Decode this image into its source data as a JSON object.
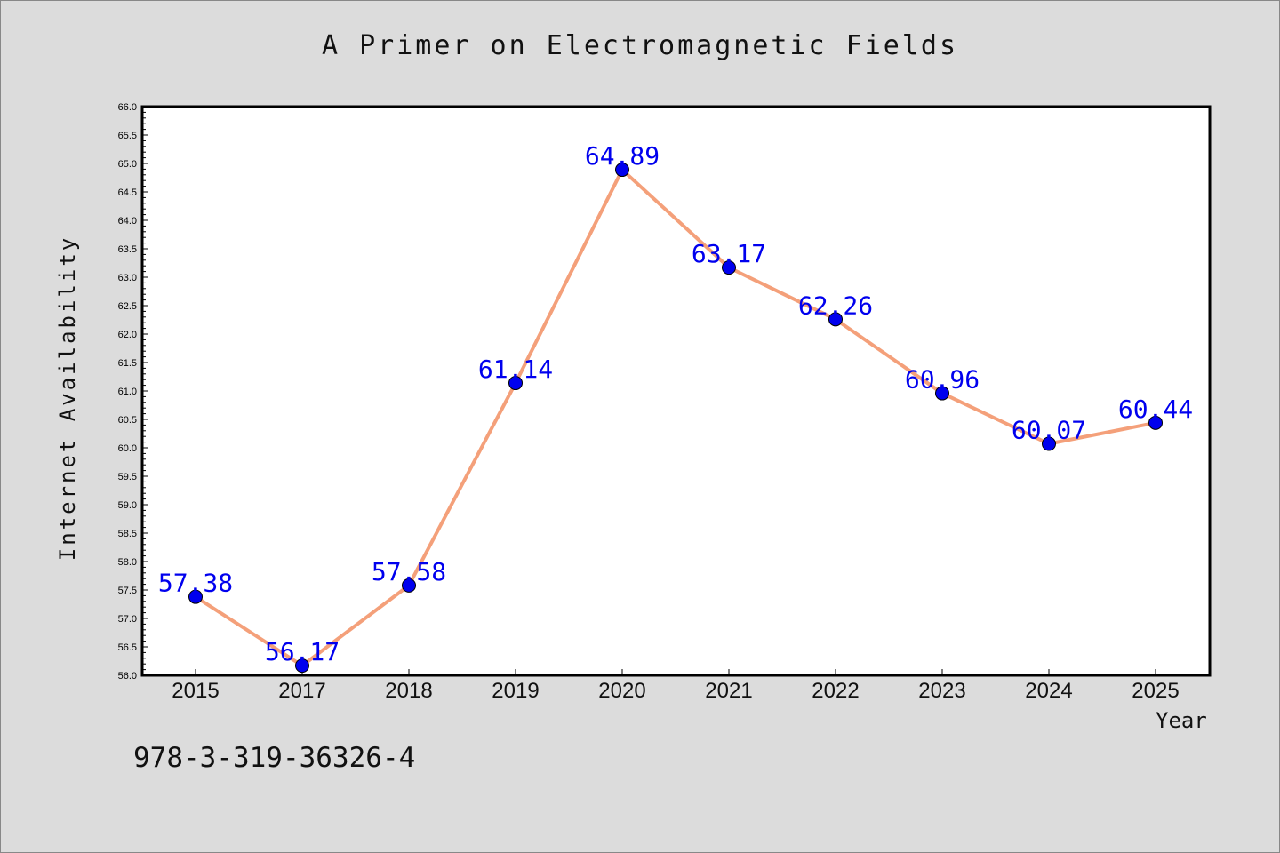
{
  "chart_data": {
    "type": "line",
    "title": "A Primer on Electromagnetic Fields",
    "xlabel": "Year",
    "ylabel": "Internet Availability",
    "categories": [
      "2015",
      "2017",
      "2018",
      "2019",
      "2020",
      "2021",
      "2022",
      "2023",
      "2024",
      "2025"
    ],
    "series": [
      {
        "values": [
          57.38,
          56.17,
          57.58,
          61.14,
          64.89,
          63.17,
          62.26,
          60.96,
          60.07,
          60.44
        ]
      }
    ],
    "data_labels": [
      "57.38",
      "56.17",
      "57.58",
      "61.14",
      "64.89",
      "63.17",
      "62.26",
      "60.96",
      "60.07",
      "60.44"
    ],
    "ylim": [
      56.0,
      66.0
    ],
    "yticks": [
      "56.0",
      "56.5",
      "57.0",
      "57.5",
      "58.0",
      "58.5",
      "59.0",
      "59.5",
      "60.0",
      "60.5",
      "61.0",
      "61.5",
      "62.0",
      "62.5",
      "63.0",
      "63.5",
      "64.0",
      "64.5",
      "65.0",
      "65.5",
      "66.0"
    ],
    "grid": false,
    "line_color": "#f4a07a",
    "marker_color": "#0000ee",
    "label_color": "#0000ee"
  },
  "annotation": {
    "isbn": "978-3-319-36326-4"
  }
}
